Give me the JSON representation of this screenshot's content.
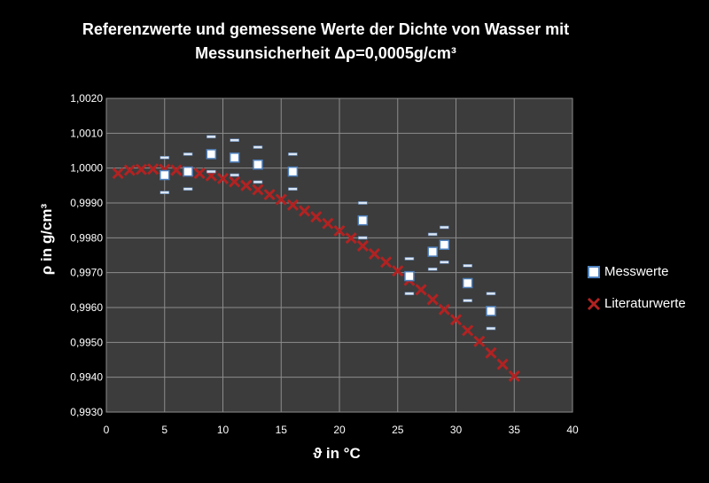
{
  "chart_data": {
    "type": "scatter",
    "title_line1": "Referenzwerte und gemessene Werte der Dichte von Wasser mit",
    "title_line2": "Messunsicherheit Δρ=0,0005g/cm³",
    "xlabel": "ϑ in °C",
    "ylabel": "ρ in g/cm³",
    "xlim": [
      0,
      40
    ],
    "ylim": [
      0.993,
      1.002
    ],
    "x_ticks": [
      "0",
      "5",
      "10",
      "15",
      "20",
      "25",
      "30",
      "35",
      "40"
    ],
    "y_ticks": [
      "0,9930",
      "0,9940",
      "0,9950",
      "0,9960",
      "0,9970",
      "0,9980",
      "0,9990",
      "1,0000",
      "1,0010",
      "1,0020"
    ],
    "grid": true,
    "legend_position": "right",
    "series": [
      {
        "name": "Messwerte",
        "marker": "square",
        "color": "#dce6f2",
        "error_bar": 0.0005,
        "points": [
          {
            "x": 5,
            "y": 0.9998
          },
          {
            "x": 7,
            "y": 0.9999
          },
          {
            "x": 9,
            "y": 1.0004
          },
          {
            "x": 11,
            "y": 1.0003
          },
          {
            "x": 13,
            "y": 1.0001
          },
          {
            "x": 16,
            "y": 0.9999
          },
          {
            "x": 22,
            "y": 0.9985
          },
          {
            "x": 26,
            "y": 0.9969
          },
          {
            "x": 28,
            "y": 0.9976
          },
          {
            "x": 29,
            "y": 0.9978
          },
          {
            "x": 31,
            "y": 0.9967
          },
          {
            "x": 33,
            "y": 0.9959
          }
        ]
      },
      {
        "name": "Literaturwerte",
        "marker": "x",
        "color": "#b22222",
        "points": [
          {
            "x": 1,
            "y": 0.99985
          },
          {
            "x": 2,
            "y": 0.99994
          },
          {
            "x": 3,
            "y": 0.99996
          },
          {
            "x": 4,
            "y": 0.99997
          },
          {
            "x": 5,
            "y": 0.99996
          },
          {
            "x": 6,
            "y": 0.99994
          },
          {
            "x": 7,
            "y": 0.9999
          },
          {
            "x": 8,
            "y": 0.99985
          },
          {
            "x": 9,
            "y": 0.99978
          },
          {
            "x": 10,
            "y": 0.9997
          },
          {
            "x": 11,
            "y": 0.99961
          },
          {
            "x": 12,
            "y": 0.9995
          },
          {
            "x": 13,
            "y": 0.99938
          },
          {
            "x": 14,
            "y": 0.99924
          },
          {
            "x": 15,
            "y": 0.9991
          },
          {
            "x": 16,
            "y": 0.99894
          },
          {
            "x": 17,
            "y": 0.99877
          },
          {
            "x": 18,
            "y": 0.9986
          },
          {
            "x": 19,
            "y": 0.99841
          },
          {
            "x": 20,
            "y": 0.9982
          },
          {
            "x": 21,
            "y": 0.99799
          },
          {
            "x": 22,
            "y": 0.99777
          },
          {
            "x": 23,
            "y": 0.99754
          },
          {
            "x": 24,
            "y": 0.9973
          },
          {
            "x": 25,
            "y": 0.99705
          },
          {
            "x": 26,
            "y": 0.99678
          },
          {
            "x": 27,
            "y": 0.99651
          },
          {
            "x": 28,
            "y": 0.99623
          },
          {
            "x": 29,
            "y": 0.99594
          },
          {
            "x": 30,
            "y": 0.99565
          },
          {
            "x": 31,
            "y": 0.99534
          },
          {
            "x": 32,
            "y": 0.99503
          },
          {
            "x": 33,
            "y": 0.9947
          },
          {
            "x": 34,
            "y": 0.99437
          },
          {
            "x": 35,
            "y": 0.99403
          }
        ]
      }
    ]
  },
  "colors": {
    "background": "#000000",
    "plot_area": "#3c3c3c",
    "gridline": "#8c8c8c",
    "text": "#ffffff"
  }
}
